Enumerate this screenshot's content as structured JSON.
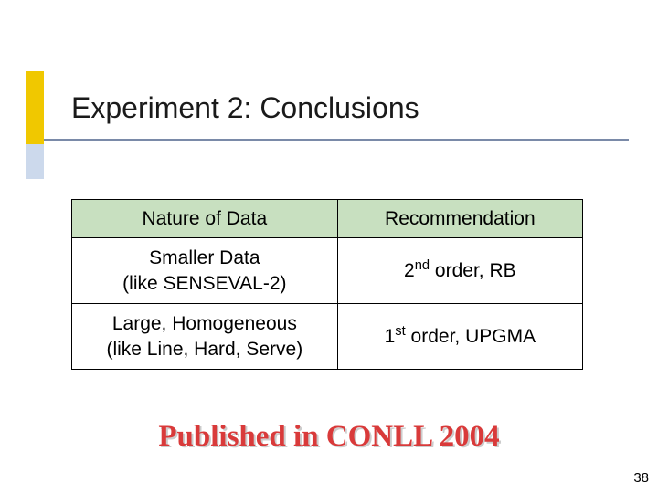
{
  "slide": {
    "title": "Experiment 2: Conclusions",
    "page_number": "38",
    "footer": "Published in CONLL 2004"
  },
  "accent": {
    "yellow": "#f0c800",
    "blue": "#ccd9ec",
    "line": "#7a8aa8"
  },
  "table": {
    "header_bg": "#c8e0c0",
    "border_color": "#000000",
    "columns": [
      "Nature of Data",
      "Recommendation"
    ],
    "rows": [
      {
        "nature_line1": "Smaller Data",
        "nature_line2": "(like SENSEVAL-2)",
        "rec_prefix": "2",
        "rec_super": "nd",
        "rec_suffix": " order, RB"
      },
      {
        "nature_line1": "Large, Homogeneous",
        "nature_line2": "(like Line, Hard, Serve)",
        "rec_prefix": "1",
        "rec_super": "st",
        "rec_suffix": " order, UPGMA"
      }
    ]
  },
  "footer_style": {
    "color": "#d93a3a",
    "shadow": "#cccccc",
    "font_family": "Times New Roman",
    "font_size_pt": 25,
    "font_weight": "bold"
  }
}
